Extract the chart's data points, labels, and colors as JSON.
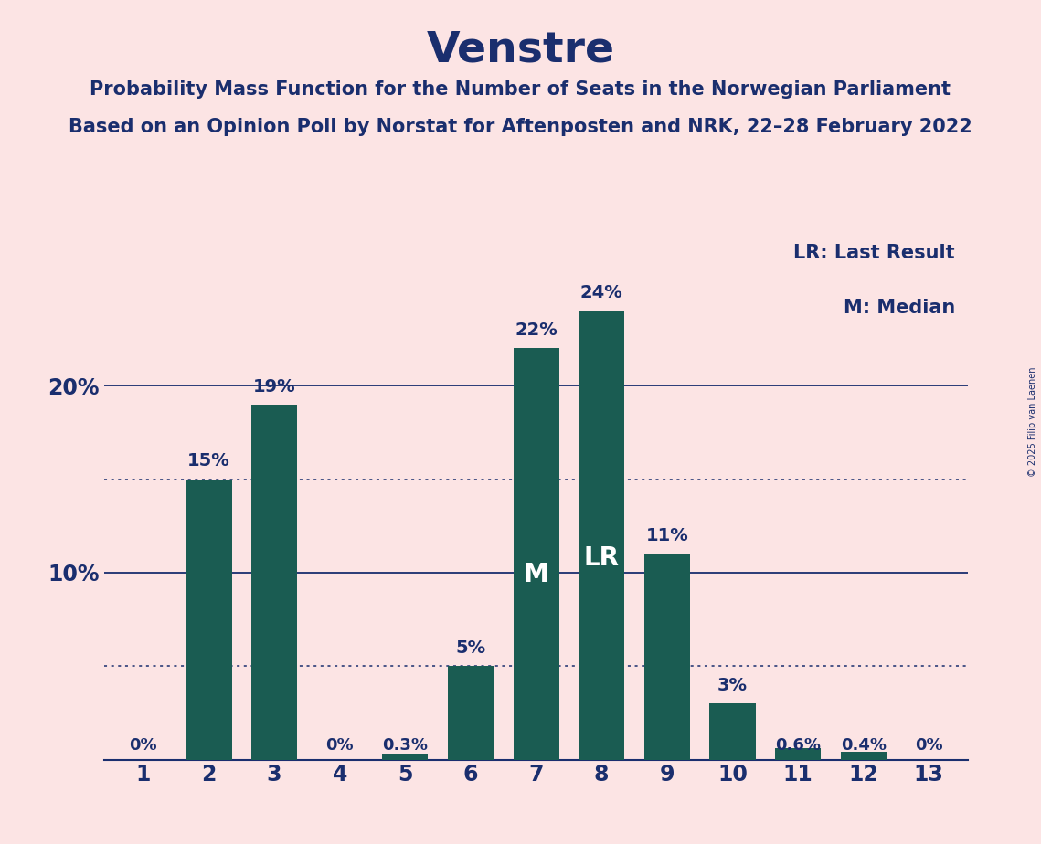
{
  "title": "Venstre",
  "subtitle1": "Probability Mass Function for the Number of Seats in the Norwegian Parliament",
  "subtitle2": "Based on an Opinion Poll by Norstat for Aftenposten and NRK, 22–28 February 2022",
  "copyright": "© 2025 Filip van Laenen",
  "categories": [
    1,
    2,
    3,
    4,
    5,
    6,
    7,
    8,
    9,
    10,
    11,
    12,
    13
  ],
  "values": [
    0.0,
    15.0,
    19.0,
    0.0,
    0.3,
    5.0,
    22.0,
    24.0,
    11.0,
    3.0,
    0.6,
    0.4,
    0.0
  ],
  "bar_color": "#1a5c52",
  "background_color": "#fce4e4",
  "text_color": "#1a2e6e",
  "bar_labels": [
    "0%",
    "15%",
    "19%",
    "0%",
    "0.3%",
    "5%",
    "22%",
    "24%",
    "11%",
    "3%",
    "0.6%",
    "0.4%",
    "0%"
  ],
  "median_bar_idx": 6,
  "last_result_bar_idx": 7,
  "legend_lr": "LR: Last Result",
  "legend_m": "M: Median",
  "hline_solid": [
    10,
    20
  ],
  "hline_dotted": [
    5,
    15
  ],
  "ylim": [
    0,
    28
  ],
  "title_fontsize": 34,
  "subtitle_fontsize": 15,
  "tick_fontsize": 17,
  "label_fontsize": 14,
  "legend_fontsize": 15,
  "inside_label_fontsize": 20
}
